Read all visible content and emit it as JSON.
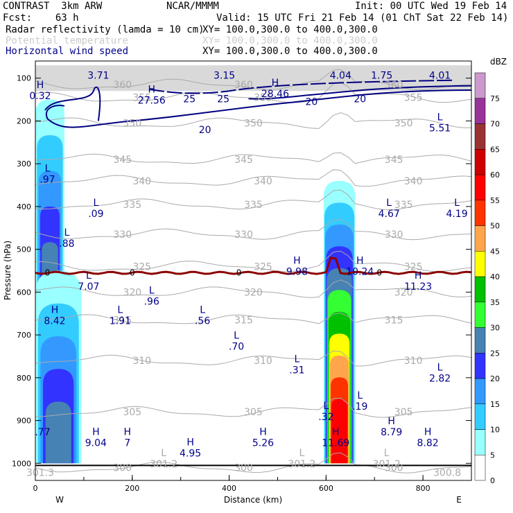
{
  "header": {
    "model": "CONTRAST  3km ARW",
    "center": "NCAR/MMMM",
    "init": "Init: 00 UTC Wed 19 Feb 14",
    "fcst": "Fcst:    63 h",
    "valid": "Valid: 15 UTC Fri 21 Feb 14 (01 ChT Sat 22 Feb 14)",
    "field1": "Radar reflectivity (lamda = 10 cm)",
    "field1_xy": "XY= 100.0,300.0 to 400.0,300.0",
    "field2": "Potential temperature",
    "field2_xy": "XY= 100.0,300.0 to 400.0,300.0",
    "field3": "Horizontal wind speed",
    "field3_xy": "XY= 100.0,300.0 to 400.0,300.0"
  },
  "colors": {
    "wind": "#000080",
    "theta": "#aaaaaa",
    "freezing": "#8b0000",
    "hl_text": "#00008b"
  },
  "chart_data": {
    "type": "cross-section",
    "xlabel": "Distance (km)",
    "ylabel": "Pressure (hPa)",
    "xlim": [
      0,
      900
    ],
    "ylim": [
      1040,
      60
    ],
    "x_ticks": [
      0,
      200,
      400,
      600,
      800
    ],
    "y_ticks": [
      100,
      200,
      300,
      400,
      500,
      600,
      700,
      800,
      900,
      1000
    ],
    "x_end_labels": {
      "left": "W",
      "right": "E"
    },
    "colorbar": {
      "unit": "dBZ",
      "levels": [
        0,
        5,
        10,
        15,
        20,
        25,
        30,
        35,
        40,
        45,
        50,
        55,
        60,
        65,
        70,
        75
      ],
      "colors": [
        "#ffffff",
        "#99ffff",
        "#33ccff",
        "#3399ff",
        "#3333ff",
        "#4682b4",
        "#33ff33",
        "#00c000",
        "#ffff00",
        "#ffa64d",
        "#ff3300",
        "#ff0000",
        "#cc0000",
        "#993333",
        "#993399",
        "#cc99cc"
      ]
    },
    "reflectivity_cells": [
      {
        "x_range": [
          0,
          60
        ],
        "p_range": [
          150,
          640
        ],
        "max_dbz": 25
      },
      {
        "x_range": [
          0,
          95
        ],
        "p_range": [
          550,
          1000
        ],
        "max_dbz": 25
      },
      {
        "x_range": [
          595,
          660
        ],
        "p_range": [
          340,
          1000
        ],
        "max_dbz": 55
      }
    ],
    "theta_contours": [
      {
        "value": "300",
        "pressure": 1010
      },
      {
        "value": "305",
        "pressure": 880
      },
      {
        "value": "310",
        "pressure": 760
      },
      {
        "value": "315",
        "pressure": 665
      },
      {
        "value": "320",
        "pressure": 600
      },
      {
        "value": "325",
        "pressure": 540
      },
      {
        "value": "330",
        "pressure": 465
      },
      {
        "value": "335",
        "pressure": 395
      },
      {
        "value": "340",
        "pressure": 340
      },
      {
        "value": "345",
        "pressure": 290
      },
      {
        "value": "350",
        "pressure": 205
      },
      {
        "value": "355",
        "pressure": 145
      },
      {
        "value": "360",
        "pressure": 115
      }
    ],
    "wind_contours": [
      {
        "value": "20",
        "label_positions": [
          [
            350,
            220
          ],
          [
            570,
            155
          ],
          [
            670,
            148
          ]
        ]
      },
      {
        "value": "25",
        "label_positions": [
          [
            318,
            148
          ],
          [
            388,
            148
          ]
        ]
      }
    ],
    "freezing_level": {
      "value": "0",
      "pressure": 555
    },
    "wind_extrema": [
      {
        "type": "H",
        "value": "0.32",
        "x": 10,
        "p": 130
      },
      {
        "type": "",
        "value": "3.71",
        "x": 130,
        "p": 82
      },
      {
        "type": "H",
        "value": "27.56",
        "x": 240,
        "p": 140
      },
      {
        "type": "",
        "value": "3.15",
        "x": 390,
        "p": 82
      },
      {
        "type": "H",
        "value": "28.46",
        "x": 495,
        "p": 125
      },
      {
        "type": "",
        "value": "4.04",
        "x": 630,
        "p": 82
      },
      {
        "type": "",
        "value": "1.75",
        "x": 715,
        "p": 82
      },
      {
        "type": "",
        "value": "4.01",
        "x": 835,
        "p": 82
      },
      {
        "type": "L",
        "value": "5.51",
        "x": 835,
        "p": 205
      },
      {
        "type": "L",
        "value": ".97",
        "x": 25,
        "p": 325
      },
      {
        "type": "L",
        "value": ".09",
        "x": 125,
        "p": 405
      },
      {
        "type": "L",
        "value": ".88",
        "x": 65,
        "p": 475
      },
      {
        "type": "L",
        "value": "4.67",
        "x": 730,
        "p": 405
      },
      {
        "type": "L",
        "value": "4.19",
        "x": 870,
        "p": 405
      },
      {
        "type": "H",
        "value": "9.98",
        "x": 540,
        "p": 540
      },
      {
        "type": "H",
        "value": "10.24",
        "x": 670,
        "p": 540
      },
      {
        "type": "L",
        "value": "7.07",
        "x": 110,
        "p": 575
      },
      {
        "type": "L",
        "value": ".96",
        "x": 240,
        "p": 610
      },
      {
        "type": "H",
        "value": "11.23",
        "x": 790,
        "p": 575
      },
      {
        "type": "H",
        "value": "8.42",
        "x": 40,
        "p": 655
      },
      {
        "type": "L",
        "value": "1.91",
        "x": 175,
        "p": 655
      },
      {
        "type": "L",
        "value": ".56",
        "x": 345,
        "p": 655
      },
      {
        "type": "L",
        "value": ".70",
        "x": 415,
        "p": 715
      },
      {
        "type": "L",
        "value": ".31",
        "x": 540,
        "p": 770
      },
      {
        "type": "L",
        "value": ".19",
        "x": 670,
        "p": 855
      },
      {
        "type": "L",
        "value": "2.82",
        "x": 835,
        "p": 790
      },
      {
        "type": "L",
        "value": ".32",
        "x": 600,
        "p": 880
      },
      {
        "type": "",
        "value": ".77",
        "x": 15,
        "p": 915
      },
      {
        "type": "H",
        "value": "9.04",
        "x": 125,
        "p": 940
      },
      {
        "type": "H",
        "value": "7",
        "x": 190,
        "p": 940
      },
      {
        "type": "H",
        "value": "4.95",
        "x": 320,
        "p": 965
      },
      {
        "type": "H",
        "value": "5.26",
        "x": 470,
        "p": 940
      },
      {
        "type": "H",
        "value": "11.69",
        "x": 620,
        "p": 940
      },
      {
        "type": "H",
        "value": "8.79",
        "x": 735,
        "p": 915
      },
      {
        "type": "H",
        "value": "8.82",
        "x": 810,
        "p": 940
      }
    ],
    "theta_extrema": [
      {
        "type": "L",
        "value": "301.2",
        "x": 265,
        "p": 990
      },
      {
        "type": "L",
        "value": "301.2",
        "x": 550,
        "p": 990
      },
      {
        "type": "L",
        "value": "301.2",
        "x": 725,
        "p": 990
      },
      {
        "type": "",
        "value": "300.8",
        "x": 850,
        "p": 1010
      },
      {
        "type": "",
        "value": "301.3",
        "x": 10,
        "p": 1010
      }
    ]
  }
}
